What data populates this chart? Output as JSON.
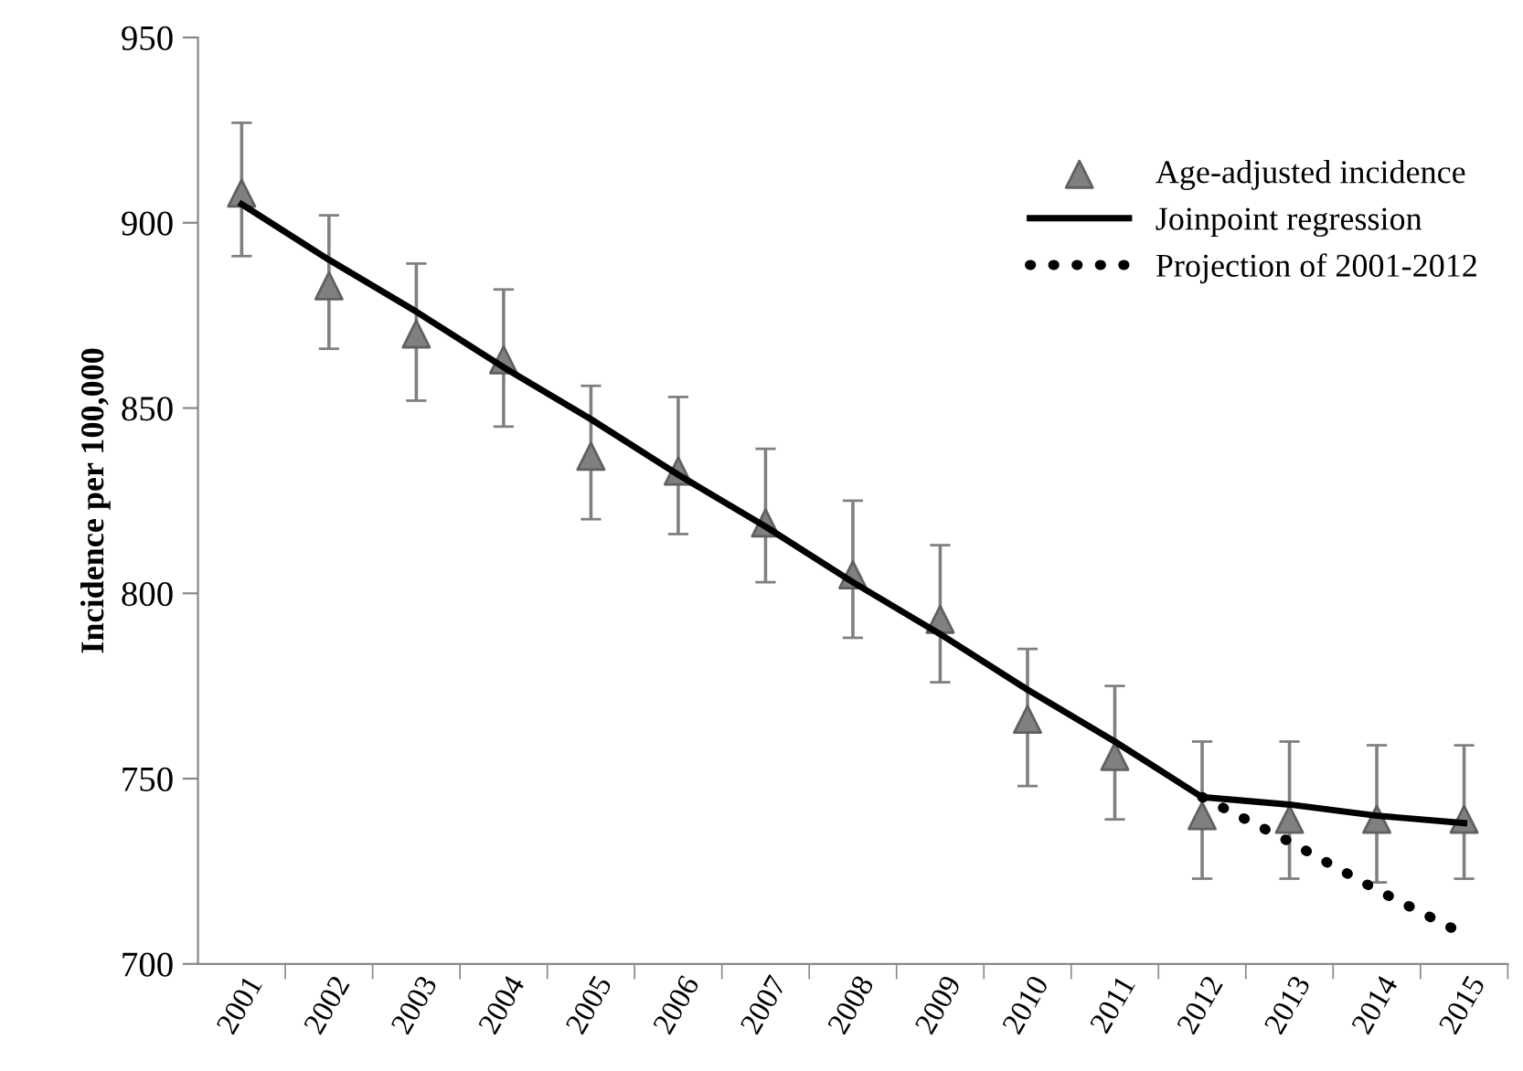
{
  "chart_data": {
    "type": "line",
    "ylabel": "Incidence per 100,000",
    "categories": [
      "2001",
      "2002",
      "2003",
      "2004",
      "2005",
      "2006",
      "2007",
      "2008",
      "2009",
      "2010",
      "2011",
      "2012",
      "2013",
      "2014",
      "2015"
    ],
    "ylim": [
      700,
      950
    ],
    "yticks": [
      700,
      750,
      800,
      850,
      900,
      950
    ],
    "grid": false,
    "legend": "top right",
    "series": [
      {
        "name": "Age-adjusted incidence",
        "type": "scatter",
        "marker": "triangle",
        "color": "#808080",
        "values": [
          908,
          883,
          870,
          863,
          837,
          833,
          819,
          805,
          793,
          766,
          756,
          740,
          739,
          739,
          739
        ],
        "errors": [
          [
            891,
            927
          ],
          [
            866,
            902
          ],
          [
            852,
            889
          ],
          [
            845,
            882
          ],
          [
            820,
            856
          ],
          [
            816,
            853
          ],
          [
            803,
            839
          ],
          [
            788,
            825
          ],
          [
            776,
            813
          ],
          [
            748,
            785
          ],
          [
            739,
            775
          ],
          [
            723,
            760
          ],
          [
            723,
            760
          ],
          [
            722,
            759
          ],
          [
            723,
            759
          ]
        ]
      },
      {
        "name": "Joinpoint regression",
        "color": "#000000",
        "line_style": "solid",
        "values": [
          905,
          890,
          876,
          861,
          847,
          832,
          818,
          803,
          789,
          774,
          760,
          745,
          743,
          740,
          738
        ]
      },
      {
        "name": "Projection of 2001-2012",
        "color": "#000000",
        "line_style": "dotted",
        "values": [
          null,
          null,
          null,
          null,
          null,
          null,
          null,
          null,
          null,
          null,
          null,
          745,
          733,
          720,
          708
        ]
      }
    ]
  }
}
